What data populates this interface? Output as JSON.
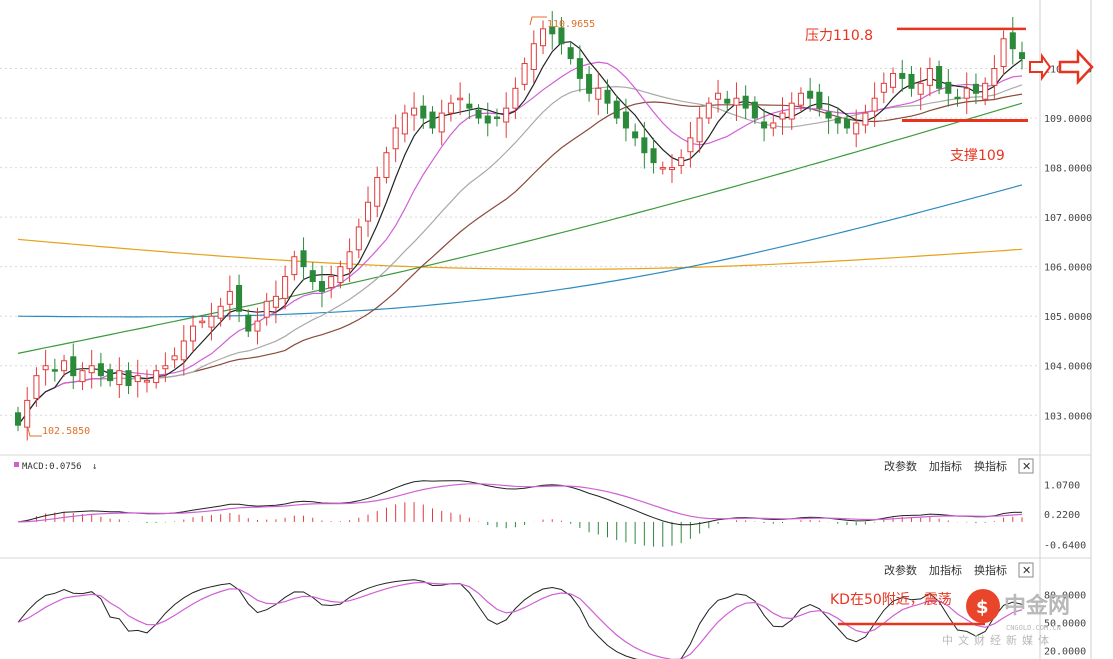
{
  "chart_data": [
    {
      "type": "candlestick",
      "yaxis_ticks": [
        "110.0000",
        "109.0000",
        "108.0000",
        "107.0000",
        "106.0000",
        "105.0000",
        "104.0000",
        "103.0000"
      ],
      "ylim": [
        102.4,
        111.1
      ],
      "high_marker": "110.9655",
      "low_marker": "102.5850",
      "annotations": {
        "resistance": "压力110.8",
        "support": "支撑109"
      },
      "levels": {
        "resistance": 110.8,
        "support": 108.95
      },
      "closes": [
        102.8,
        103.3,
        103.8,
        104.0,
        103.9,
        104.1,
        103.8,
        103.9,
        104.0,
        103.8,
        103.7,
        103.9,
        103.6,
        103.8,
        103.7,
        103.9,
        104.0,
        104.2,
        104.5,
        104.8,
        104.9,
        105.0,
        105.2,
        105.5,
        105.1,
        104.7,
        104.9,
        105.3,
        105.4,
        105.8,
        106.2,
        106.0,
        105.7,
        105.5,
        105.8,
        106.0,
        106.3,
        106.8,
        107.3,
        107.8,
        108.3,
        108.8,
        109.1,
        109.2,
        109.0,
        108.8,
        109.1,
        109.3,
        109.4,
        109.2,
        109.0,
        108.9,
        109.0,
        109.2,
        109.6,
        110.1,
        110.5,
        110.8,
        110.7,
        110.5,
        110.2,
        109.8,
        109.5,
        109.6,
        109.3,
        109.0,
        108.8,
        108.6,
        108.3,
        108.1,
        108.0,
        108.0,
        108.2,
        108.6,
        109.0,
        109.3,
        109.5,
        109.3,
        109.4,
        109.2,
        109.0,
        108.8,
        108.9,
        109.1,
        109.3,
        109.5,
        109.4,
        109.2,
        109.0,
        108.9,
        108.8,
        108.9,
        109.1,
        109.4,
        109.7,
        109.9,
        109.8,
        109.6,
        109.7,
        110.0,
        109.6,
        109.5,
        109.4,
        109.6,
        109.5,
        109.7,
        110.0,
        110.6,
        110.4,
        110.2
      ]
    },
    {
      "type": "line",
      "title": "MACD:0.0756",
      "yaxis_ticks": [
        "1.0700",
        "0.2200",
        "-0.6400"
      ],
      "ylim": [
        -0.8,
        1.25
      ]
    },
    {
      "type": "line",
      "title": "KD",
      "yaxis_ticks": [
        "80.0000",
        "50.0000",
        "20.0000"
      ],
      "ylim": [
        15,
        90
      ],
      "annotation": "KD在50附近，震荡"
    }
  ],
  "panel_controls": {
    "change_params": "改参数",
    "add_indicator": "加指标",
    "switch_indicator": "换指标",
    "close": "✕"
  },
  "watermark": {
    "brand": "中金网",
    "url": "CNGOLD.COM.CN",
    "tagline": "中文财经新媒体"
  },
  "colors": {
    "up": "#e23b3b",
    "down": "#2b8a3a",
    "annotation": "#e8331f",
    "macd": "#d05fd6",
    "signal": "#222222"
  }
}
